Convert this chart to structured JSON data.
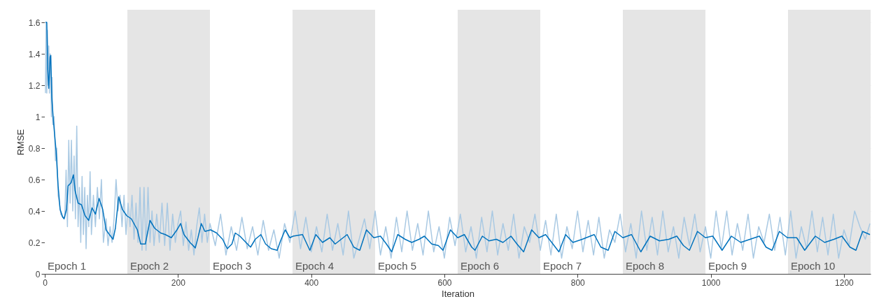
{
  "chart_data": {
    "type": "line",
    "xlabel": "Iteration",
    "ylabel": "RMSE",
    "xlim": [
      0,
      1240
    ],
    "ylim": [
      0,
      1.68
    ],
    "xticks": [
      0,
      200,
      400,
      600,
      800,
      1000,
      1200
    ],
    "yticks": [
      0,
      0.2,
      0.4,
      0.6,
      0.8,
      1,
      1.2,
      1.4,
      1.6
    ],
    "grid": "y",
    "line_style": "solid",
    "marker": "none",
    "bands": [
      {
        "axis": "x",
        "from": 0,
        "to": 124,
        "color": "#ffffff",
        "label": "Epoch 1"
      },
      {
        "axis": "x",
        "from": 124,
        "to": 248,
        "color": "#e5e5e5",
        "label": "Epoch 2"
      },
      {
        "axis": "x",
        "from": 248,
        "to": 372,
        "color": "#ffffff",
        "label": "Epoch 3"
      },
      {
        "axis": "x",
        "from": 372,
        "to": 496,
        "color": "#e5e5e5",
        "label": "Epoch 4"
      },
      {
        "axis": "x",
        "from": 496,
        "to": 620,
        "color": "#ffffff",
        "label": "Epoch 5"
      },
      {
        "axis": "x",
        "from": 620,
        "to": 744,
        "color": "#e5e5e5",
        "label": "Epoch 6"
      },
      {
        "axis": "x",
        "from": 744,
        "to": 868,
        "color": "#ffffff",
        "label": "Epoch 7"
      },
      {
        "axis": "x",
        "from": 868,
        "to": 992,
        "color": "#e5e5e5",
        "label": "Epoch 8"
      },
      {
        "axis": "x",
        "from": 992,
        "to": 1116,
        "color": "#ffffff",
        "label": "Epoch 9"
      },
      {
        "axis": "x",
        "from": 1116,
        "to": 1240,
        "color": "#e5e5e5",
        "label": "Epoch 10"
      }
    ],
    "series": [
      {
        "color": "#a9c9e3",
        "x": [
          1,
          2,
          3,
          4,
          5,
          6,
          7,
          8,
          9,
          10,
          11,
          12,
          14,
          16,
          18,
          20,
          22,
          24,
          27,
          30,
          32,
          34,
          36,
          38,
          40,
          42,
          44,
          46,
          48,
          50,
          52,
          54,
          56,
          58,
          60,
          62,
          64,
          66,
          68,
          70,
          73,
          76,
          79,
          82,
          85,
          88,
          92,
          95,
          98,
          101,
          104,
          107,
          110,
          113,
          116,
          119,
          122,
          125,
          128,
          131,
          134,
          137,
          140,
          143,
          146,
          149,
          152,
          155,
          158,
          161,
          164,
          168,
          172,
          176,
          180,
          184,
          188,
          192,
          196,
          200,
          204,
          208,
          212,
          216,
          220,
          224,
          228,
          232,
          236,
          240,
          244,
          248,
          256,
          264,
          272,
          280,
          288,
          296,
          304,
          312,
          320,
          328,
          336,
          344,
          352,
          360,
          368,
          376,
          384,
          392,
          400,
          408,
          416,
          424,
          432,
          440,
          448,
          456,
          464,
          472,
          480,
          488,
          496,
          504,
          512,
          520,
          528,
          536,
          544,
          552,
          560,
          568,
          576,
          584,
          592,
          600,
          608,
          616,
          624,
          632,
          640,
          648,
          656,
          664,
          672,
          680,
          688,
          696,
          704,
          712,
          720,
          728,
          736,
          744,
          752,
          760,
          768,
          776,
          784,
          792,
          800,
          808,
          816,
          824,
          832,
          840,
          848,
          856,
          864,
          872,
          880,
          888,
          896,
          904,
          912,
          920,
          928,
          936,
          944,
          952,
          960,
          968,
          976,
          984,
          992,
          1000,
          1008,
          1016,
          1024,
          1032,
          1040,
          1048,
          1056,
          1064,
          1072,
          1080,
          1088,
          1096,
          1104,
          1112,
          1120,
          1128,
          1136,
          1144,
          1152,
          1160,
          1168,
          1176,
          1184,
          1192,
          1200,
          1208,
          1216,
          1224,
          1232,
          1239
        ],
        "values": [
          1.15,
          1.6,
          1.15,
          1.55,
          1.2,
          1.45,
          1.15,
          1.4,
          1.3,
          1,
          1.25,
          0.95,
          1,
          0.72,
          0.8,
          0.5,
          0.45,
          0.38,
          0.36,
          0.36,
          0.66,
          0.3,
          0.85,
          0.45,
          0.85,
          0.4,
          0.75,
          0.35,
          0.94,
          0.3,
          0.55,
          0.2,
          0.62,
          0.25,
          0.55,
          0.16,
          0.5,
          0.3,
          0.65,
          0.25,
          0.5,
          0.3,
          0.55,
          0.35,
          0.6,
          0.2,
          0.35,
          0.18,
          0.3,
          0.2,
          0.35,
          0.6,
          0.4,
          0.5,
          0.3,
          0.5,
          0.25,
          0.45,
          0.3,
          0.5,
          0.22,
          0.45,
          0.2,
          0.55,
          0.15,
          0.55,
          0.15,
          0.55,
          0.2,
          0.4,
          0.18,
          0.38,
          0.2,
          0.45,
          0.18,
          0.45,
          0.15,
          0.38,
          0.2,
          0.32,
          0.4,
          0.18,
          0.33,
          0.15,
          0.28,
          0.12,
          0.3,
          0.42,
          0.2,
          0.38,
          0.2,
          0.32,
          0.18,
          0.38,
          0.12,
          0.3,
          0.15,
          0.36,
          0.16,
          0.3,
          0.12,
          0.34,
          0.15,
          0.28,
          0.1,
          0.32,
          0.2,
          0.4,
          0.16,
          0.36,
          0.14,
          0.3,
          0.14,
          0.38,
          0.15,
          0.32,
          0.12,
          0.4,
          0.1,
          0.22,
          0.35,
          0.16,
          0.4,
          0.12,
          0.3,
          0.1,
          0.36,
          0.14,
          0.4,
          0.15,
          0.32,
          0.12,
          0.4,
          0.14,
          0.3,
          0.1,
          0.36,
          0.18,
          0.38,
          0.14,
          0.3,
          0.1,
          0.36,
          0.14,
          0.4,
          0.12,
          0.32,
          0.15,
          0.38,
          0.1,
          0.3,
          0.2,
          0.38,
          0.15,
          0.34,
          0.12,
          0.38,
          0.1,
          0.3,
          0.16,
          0.4,
          0.14,
          0.34,
          0.12,
          0.36,
          0.1,
          0.28,
          0.2,
          0.38,
          0.14,
          0.32,
          0.1,
          0.4,
          0.15,
          0.36,
          0.12,
          0.4,
          0.14,
          0.3,
          0.1,
          0.36,
          0.18,
          0.38,
          0.14,
          0.3,
          0.1,
          0.4,
          0.16,
          0.4,
          0.12,
          0.32,
          0.15,
          0.38,
          0.1,
          0.3,
          0.2,
          0.38,
          0.15,
          0.36,
          0.12,
          0.4,
          0.1,
          0.3,
          0.16,
          0.4,
          0.14,
          0.36,
          0.12,
          0.38,
          0.1,
          0.28,
          0.18,
          0.4,
          0.3,
          0.22,
          0.32
        ]
      },
      {
        "color": "#0072bd",
        "x": [
          1,
          3,
          4.5,
          6,
          8,
          9,
          10.5,
          13,
          17,
          20,
          23,
          27,
          29,
          32.5,
          35,
          39.5,
          43,
          45.5,
          50,
          55,
          60.5,
          66,
          71,
          76,
          81.5,
          87,
          92,
          97,
          102.5,
          106,
          111,
          116.5,
          123,
          130,
          139,
          144,
          151,
          158,
          165,
          174,
          181,
          190,
          198.5,
          204,
          209,
          218,
          226,
          230,
          235,
          240.5,
          249,
          258,
          267,
          274,
          281,
          286,
          293,
          302,
          309,
          316,
          324.5,
          331.5,
          340,
          349,
          354,
          361,
          368,
          373,
          387,
          398,
          407,
          417,
          428,
          436,
          445,
          454,
          464,
          473,
          483,
          494,
          504,
          513,
          521,
          530,
          541,
          551,
          562,
          570,
          581,
          591,
          598,
          609,
          620,
          630,
          641,
          646,
          657,
          667,
          678,
          688,
          700,
          709,
          719,
          731,
          742,
          752,
          763,
          772,
          782,
          793,
          807,
          825,
          835,
          846,
          856,
          868,
          881,
          895,
          909,
          923,
          937,
          949,
          959,
          968,
          980,
          992,
          1003,
          1017,
          1031,
          1045,
          1059,
          1073,
          1083,
          1092,
          1103,
          1115,
          1129,
          1141,
          1157,
          1171,
          1185,
          1197,
          1209,
          1218,
          1228,
          1239
        ],
        "values": [
          1.6,
          1.6,
          1.3,
          1.18,
          1.38,
          1.39,
          1.12,
          0.97,
          0.78,
          0.56,
          0.41,
          0.36,
          0.35,
          0.41,
          0.56,
          0.58,
          0.63,
          0.53,
          0.45,
          0.44,
          0.37,
          0.34,
          0.42,
          0.38,
          0.48,
          0.41,
          0.28,
          0.25,
          0.22,
          0.29,
          0.49,
          0.41,
          0.37,
          0.35,
          0.28,
          0.19,
          0.19,
          0.34,
          0.29,
          0.26,
          0.25,
          0.23,
          0.28,
          0.32,
          0.25,
          0.2,
          0.165,
          0.23,
          0.32,
          0.27,
          0.28,
          0.26,
          0.22,
          0.16,
          0.19,
          0.26,
          0.24,
          0.2,
          0.17,
          0.22,
          0.25,
          0.19,
          0.16,
          0.15,
          0.21,
          0.28,
          0.23,
          0.24,
          0.25,
          0.15,
          0.25,
          0.2,
          0.23,
          0.19,
          0.22,
          0.25,
          0.17,
          0.15,
          0.28,
          0.23,
          0.24,
          0.19,
          0.14,
          0.25,
          0.22,
          0.2,
          0.22,
          0.24,
          0.19,
          0.18,
          0.15,
          0.28,
          0.23,
          0.25,
          0.17,
          0.15,
          0.24,
          0.21,
          0.22,
          0.2,
          0.24,
          0.19,
          0.14,
          0.28,
          0.23,
          0.25,
          0.19,
          0.14,
          0.25,
          0.2,
          0.22,
          0.25,
          0.17,
          0.15,
          0.27,
          0.23,
          0.25,
          0.14,
          0.24,
          0.21,
          0.22,
          0.24,
          0.18,
          0.15,
          0.27,
          0.23,
          0.24,
          0.15,
          0.24,
          0.2,
          0.22,
          0.24,
          0.17,
          0.15,
          0.27,
          0.23,
          0.23,
          0.15,
          0.24,
          0.2,
          0.22,
          0.24,
          0.17,
          0.15,
          0.27,
          0.25
        ]
      }
    ]
  }
}
